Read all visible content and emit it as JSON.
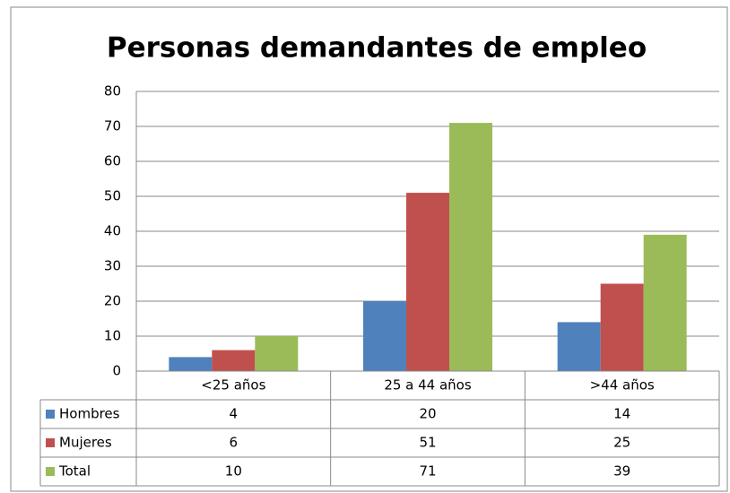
{
  "chart_data": {
    "type": "bar",
    "title": "Personas demandantes de empleo",
    "categories": [
      "<25 años",
      "25 a 44 años",
      ">44 años"
    ],
    "series": [
      {
        "name": "Hombres",
        "color": "#4f81bd",
        "values": [
          4,
          20,
          14
        ]
      },
      {
        "name": "Mujeres",
        "color": "#c0504d",
        "values": [
          6,
          51,
          25
        ]
      },
      {
        "name": "Total",
        "color": "#9bbb59",
        "values": [
          10,
          71,
          39
        ]
      }
    ],
    "ylim": [
      0,
      80
    ],
    "yticks": [
      0,
      10,
      20,
      30,
      40,
      50,
      60,
      70,
      80
    ],
    "grid": true,
    "data_table": true
  }
}
